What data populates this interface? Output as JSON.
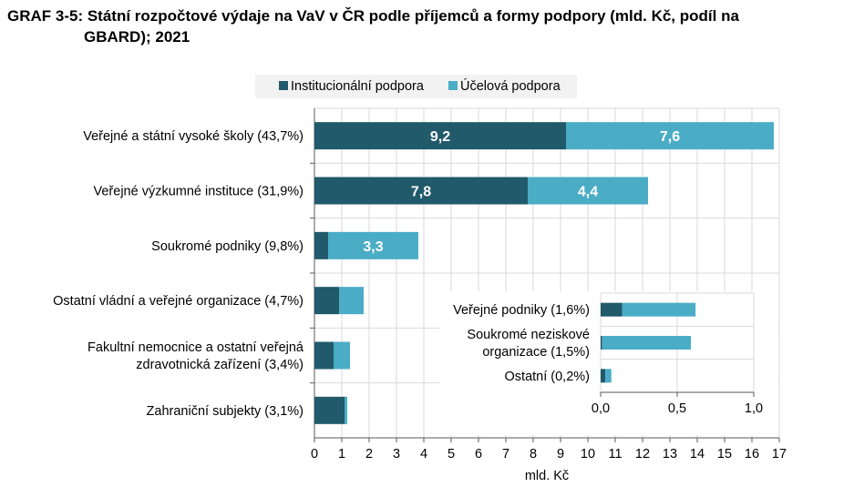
{
  "title_line1": "GRAF 3-5: Státní rozpočtové výdaje na VaV v ČR podle příjemců a formy podpory (mld. Kč, podíl na",
  "title_line2": "GBARD); 2021",
  "colors": {
    "institutional": "#215a6b",
    "targeted": "#4bacc6",
    "grid": "#d9d9d9"
  },
  "chart_data": [
    {
      "type": "bar",
      "orientation": "horizontal",
      "stacked": true,
      "categories": [
        "Veřejné a státní vysoké školy (43,7%)",
        "Veřejné výzkumné instituce (31,9%)",
        "Soukromé podniky (9,8%)",
        "Ostatní vládní a veřejné organizace (4,7%)",
        "Fakultní nemocnice a ostatní veřejná|zdravotnická zařízení (3,4%)",
        "Zahraniční subjekty (3,1%)"
      ],
      "series": [
        {
          "name": "Institucionální podpora",
          "values": [
            9.2,
            7.8,
            0.5,
            0.9,
            0.7,
            1.1
          ],
          "labels": [
            "9,2",
            "7,8",
            "",
            "",
            "",
            ""
          ]
        },
        {
          "name": "Účelová podpora",
          "values": [
            7.6,
            4.4,
            3.3,
            0.9,
            0.6,
            0.1
          ],
          "labels": [
            "7,6",
            "4,4",
            "3,3",
            "",
            "",
            ""
          ]
        }
      ],
      "xlabel": "mld. Kč",
      "xlim": [
        0,
        17
      ],
      "xticks": [
        "0",
        "1",
        "2",
        "3",
        "4",
        "5",
        "6",
        "7",
        "8",
        "9",
        "10",
        "11",
        "12",
        "13",
        "14",
        "15",
        "16",
        "17"
      ],
      "grid": true,
      "legend": "top"
    },
    {
      "type": "bar",
      "orientation": "horizontal",
      "stacked": true,
      "inset": true,
      "categories": [
        "Veřejné podniky (1,6%)",
        "Soukromé neziskové|organizace (1,5%)",
        "Ostatní (0,2%)"
      ],
      "series": [
        {
          "name": "Institucionální podpora",
          "values": [
            0.14,
            0.01,
            0.03
          ]
        },
        {
          "name": "Účelová podpora",
          "values": [
            0.48,
            0.58,
            0.04
          ]
        }
      ],
      "xlim": [
        0,
        1
      ],
      "xticks": [
        "0,0",
        "0,5",
        "1,0"
      ],
      "grid": true
    }
  ]
}
